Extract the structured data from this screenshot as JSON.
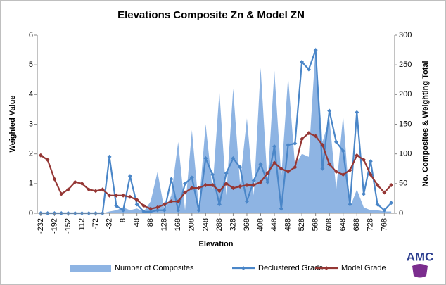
{
  "chart_data": {
    "type": "combo",
    "title": "Elevations Composite Zn & Model ZN",
    "x_label": "Elevation",
    "y_label": "Weighted Value",
    "y2_label": "No. Composites & Weighting Total",
    "logo": "AMC",
    "categories": [
      "-232",
      null,
      "-192",
      null,
      "-152",
      null,
      "-112",
      null,
      "-72",
      null,
      "-32",
      null,
      "8",
      null,
      "48",
      null,
      "88",
      null,
      "128",
      null,
      "168",
      null,
      "208",
      null,
      "248",
      null,
      "288",
      null,
      "328",
      null,
      "368",
      null,
      "408",
      null,
      "448",
      null,
      "488",
      null,
      "528",
      null,
      "568",
      null,
      "608",
      null,
      "648",
      null,
      "688",
      null,
      "728",
      null,
      "768",
      null
    ],
    "ylim": [
      0,
      6
    ],
    "yticks": [
      0,
      1,
      2,
      3,
      4,
      5,
      6
    ],
    "y2lim": [
      0,
      300
    ],
    "y2ticks": [
      0,
      50,
      100,
      150,
      200,
      250,
      300
    ],
    "legend": "bottom",
    "series": [
      {
        "name": "Number of Composites",
        "type": "area",
        "axis": "y2",
        "color": "#8eb4e3",
        "values": [
          0,
          0,
          0,
          0,
          0,
          0,
          0,
          0,
          0,
          0,
          3,
          5,
          10,
          5,
          8,
          3,
          20,
          70,
          5,
          30,
          120,
          5,
          140,
          10,
          150,
          40,
          205,
          30,
          210,
          50,
          160,
          30,
          245,
          50,
          240,
          60,
          230,
          80,
          100,
          95,
          280,
          120,
          160,
          40,
          165,
          10,
          40,
          10,
          5,
          5,
          3,
          3
        ]
      },
      {
        "name": "Declustered Grade",
        "type": "line",
        "color": "#4a86c8",
        "marker": "diamond",
        "values": [
          0,
          0,
          0,
          0,
          0,
          0,
          0,
          0,
          0,
          0,
          1.9,
          0.25,
          0.1,
          1.25,
          0.3,
          0.05,
          0.05,
          0.1,
          0.1,
          1.15,
          0.1,
          1.0,
          1.2,
          0.1,
          1.85,
          1.3,
          0.3,
          1.35,
          1.85,
          1.55,
          0.4,
          1.1,
          1.65,
          1.05,
          2.25,
          0.15,
          2.3,
          2.35,
          5.1,
          4.85,
          5.5,
          1.5,
          3.45,
          2.4,
          2.1,
          0.3,
          3.4,
          0.65,
          1.75,
          0.3,
          0.1,
          0.35
        ]
      },
      {
        "name": "Model Grade",
        "type": "line",
        "color": "#953735",
        "marker": "diamond",
        "values": [
          1.95,
          1.8,
          1.15,
          0.65,
          0.8,
          1.05,
          1.0,
          0.8,
          0.75,
          0.8,
          0.6,
          0.6,
          0.6,
          0.55,
          0.45,
          0.25,
          0.15,
          0.2,
          0.3,
          0.4,
          0.4,
          0.7,
          0.85,
          0.85,
          0.95,
          0.95,
          0.75,
          1.0,
          0.85,
          0.9,
          0.95,
          0.95,
          1.05,
          1.35,
          1.7,
          1.5,
          1.4,
          1.55,
          2.5,
          2.7,
          2.6,
          2.3,
          1.65,
          1.4,
          1.3,
          1.45,
          1.95,
          1.8,
          1.3,
          0.95,
          0.7,
          0.95
        ]
      }
    ]
  }
}
